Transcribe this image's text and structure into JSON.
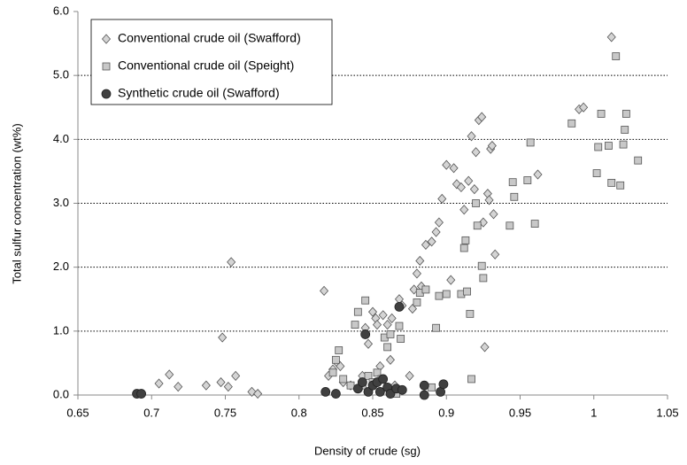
{
  "chart_data": {
    "type": "scatter",
    "x_label": "Density of crude (sg)",
    "y_label": "Total sulfur concentration (wt%)",
    "xlim": [
      0.65,
      1.05
    ],
    "xticks": [
      0.65,
      0.7,
      0.75,
      0.8,
      0.85,
      0.9,
      0.95,
      1,
      1.05
    ],
    "ylim": [
      0,
      6
    ],
    "yticks": [
      {
        "value": 0,
        "label": "0.0"
      },
      {
        "value": 1,
        "label": "1.0"
      },
      {
        "value": 2,
        "label": "2.0"
      },
      {
        "value": 3,
        "label": "3.0"
      },
      {
        "value": 4,
        "label": "4.0"
      },
      {
        "value": 5,
        "label": "5.0"
      },
      {
        "value": 6,
        "label": "6.0"
      }
    ],
    "grid": true,
    "legend": "upper left",
    "series": [
      {
        "name": "Conventional crude oil (Swafford)",
        "marker": "diamond",
        "color": "#d4d4d4",
        "x": [
          0.705,
          0.712,
          0.718,
          0.737,
          0.747,
          0.748,
          0.752,
          0.754,
          0.757,
          0.768,
          0.772,
          0.817,
          0.82,
          0.823,
          0.826,
          0.828,
          0.83,
          0.835,
          0.84,
          0.843,
          0.845,
          0.847,
          0.85,
          0.852,
          0.853,
          0.855,
          0.857,
          0.86,
          0.862,
          0.863,
          0.865,
          0.868,
          0.87,
          0.875,
          0.877,
          0.878,
          0.88,
          0.882,
          0.883,
          0.886,
          0.89,
          0.893,
          0.895,
          0.897,
          0.9,
          0.903,
          0.905,
          0.907,
          0.91,
          0.912,
          0.915,
          0.917,
          0.919,
          0.92,
          0.922,
          0.924,
          0.925,
          0.926,
          0.928,
          0.929,
          0.93,
          0.931,
          0.932,
          0.933,
          0.962,
          0.99,
          0.993,
          1.012
        ],
        "values": [
          0.18,
          0.32,
          0.13,
          0.15,
          0.2,
          0.9,
          0.13,
          2.08,
          0.3,
          0.05,
          0.02,
          1.63,
          0.3,
          0.4,
          0.5,
          0.45,
          0.2,
          0.15,
          0.1,
          0.3,
          1.05,
          0.8,
          1.3,
          1.2,
          1.1,
          0.45,
          1.25,
          1.1,
          0.55,
          1.2,
          0.15,
          1.5,
          1.4,
          0.3,
          1.35,
          1.65,
          1.9,
          2.1,
          1.7,
          2.35,
          2.4,
          2.55,
          2.7,
          3.07,
          3.6,
          1.8,
          3.55,
          3.3,
          3.25,
          2.9,
          3.35,
          4.05,
          3.22,
          3.8,
          4.3,
          4.35,
          2.7,
          0.75,
          3.15,
          3.05,
          3.85,
          3.9,
          2.83,
          2.2,
          3.45,
          4.47,
          4.5,
          5.6
        ]
      },
      {
        "name": "Conventional crude oil (Speight)",
        "marker": "square",
        "color": "#c8c8c8",
        "x": [
          0.823,
          0.825,
          0.827,
          0.83,
          0.835,
          0.838,
          0.84,
          0.843,
          0.845,
          0.847,
          0.85,
          0.853,
          0.856,
          0.858,
          0.86,
          0.862,
          0.866,
          0.868,
          0.869,
          0.88,
          0.882,
          0.886,
          0.89,
          0.893,
          0.895,
          0.9,
          0.91,
          0.912,
          0.913,
          0.914,
          0.916,
          0.917,
          0.92,
          0.921,
          0.924,
          0.925,
          0.943,
          0.945,
          0.946,
          0.955,
          0.957,
          0.96,
          0.985,
          1.002,
          1.003,
          1.005,
          1.01,
          1.012,
          1.015,
          1.018,
          1.02,
          1.021,
          1.022,
          1.03
        ],
        "values": [
          0.35,
          0.55,
          0.7,
          0.25,
          0.15,
          1.1,
          1.3,
          0.15,
          1.48,
          0.3,
          0.2,
          0.35,
          0.25,
          0.9,
          0.75,
          0.95,
          0.02,
          1.08,
          0.88,
          1.45,
          1.6,
          1.65,
          0.12,
          1.05,
          1.55,
          1.58,
          1.58,
          2.3,
          2.42,
          1.62,
          1.27,
          0.25,
          3.0,
          2.65,
          2.02,
          1.83,
          2.65,
          3.33,
          3.1,
          3.36,
          3.95,
          2.68,
          4.25,
          3.47,
          3.88,
          4.4,
          3.9,
          3.32,
          5.3,
          3.28,
          3.92,
          4.15,
          4.4,
          3.67
        ]
      },
      {
        "name": "Synthetic crude oil (Swafford)",
        "marker": "circle",
        "color": "#404040",
        "x": [
          0.69,
          0.693,
          0.818,
          0.825,
          0.84,
          0.843,
          0.845,
          0.847,
          0.85,
          0.853,
          0.855,
          0.857,
          0.86,
          0.862,
          0.866,
          0.868,
          0.87,
          0.885,
          0.885,
          0.896,
          0.898
        ],
        "values": [
          0.02,
          0.02,
          0.05,
          0.02,
          0.1,
          0.2,
          0.95,
          0.05,
          0.15,
          0.2,
          0.05,
          0.25,
          0.12,
          0.02,
          0.1,
          1.38,
          0.08,
          0.0,
          0.15,
          0.05,
          0.17
        ]
      }
    ]
  }
}
